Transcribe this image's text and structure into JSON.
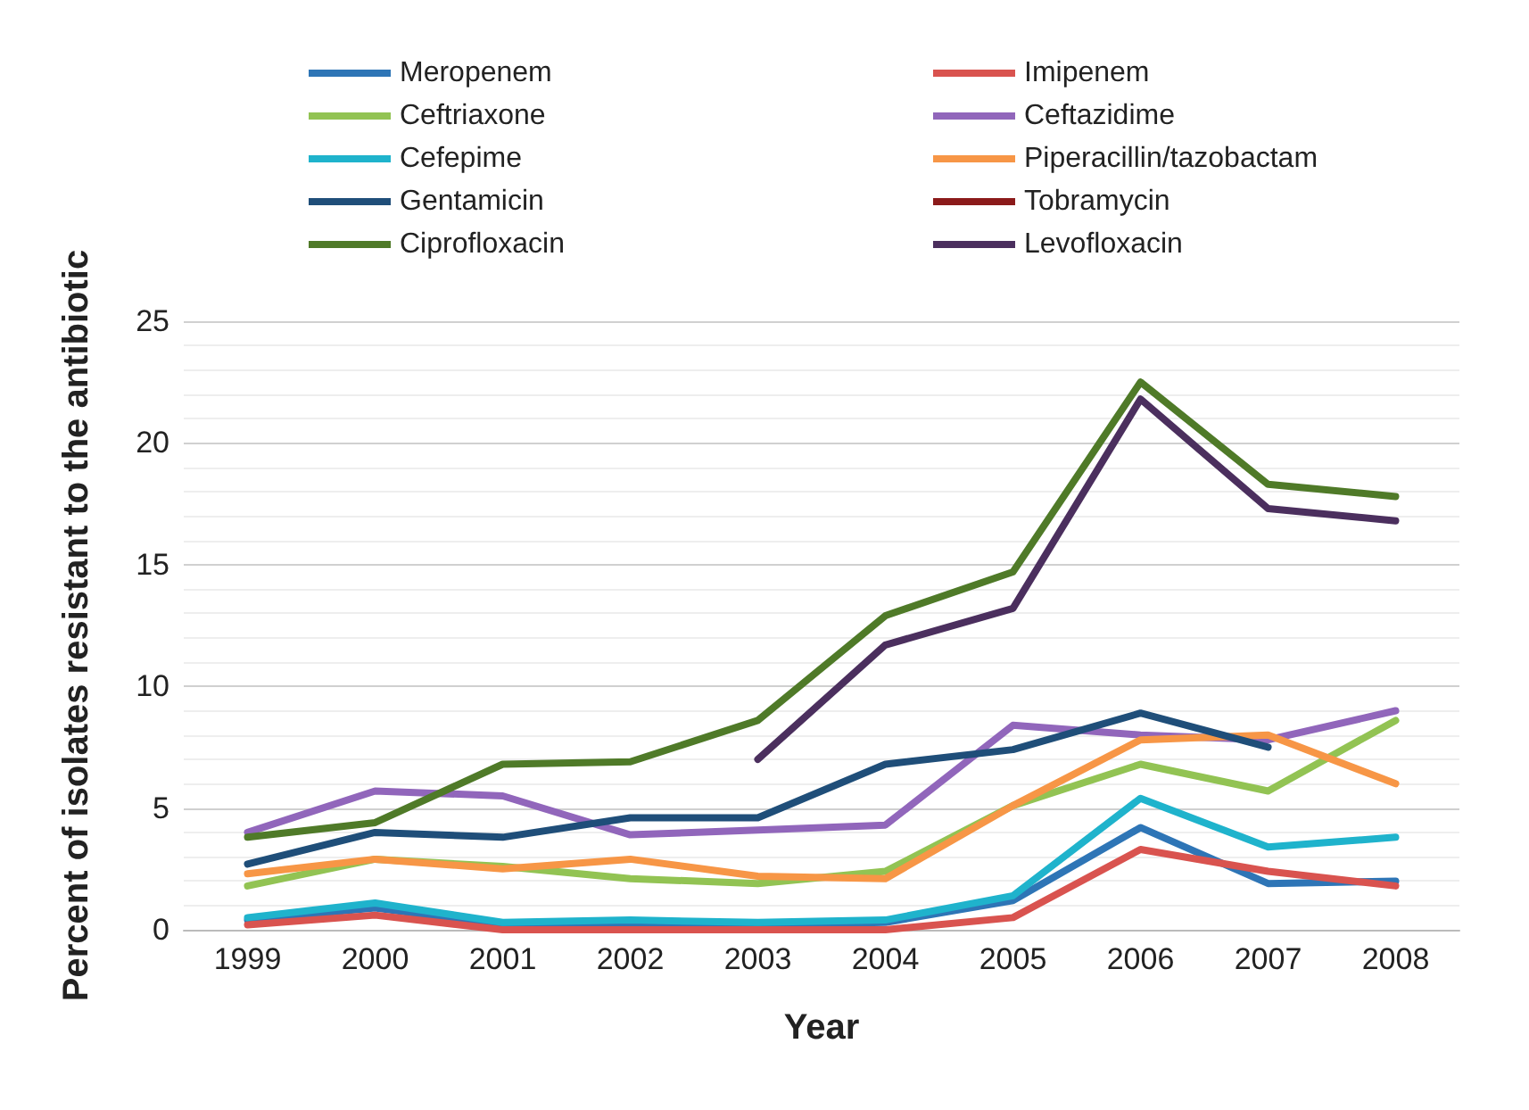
{
  "chart_data": {
    "type": "line",
    "xlabel": "Year",
    "ylabel": "Percent of isolates resistant to the antibiotic",
    "categories": [
      "1999",
      "2000",
      "2001",
      "2002",
      "2003",
      "2004",
      "2005",
      "2006",
      "2007",
      "2008"
    ],
    "ylim": [
      0,
      25
    ],
    "yticks": [
      0,
      5,
      10,
      15,
      20,
      25
    ],
    "grid": "y",
    "legend": "top",
    "marker": "none",
    "line_style": "solid",
    "series": [
      {
        "name": "Meropenem",
        "color": "#2e75b6",
        "values": [
          0.4,
          0.9,
          0.2,
          0.3,
          0.2,
          0.3,
          1.2,
          4.2,
          1.9,
          2.0
        ]
      },
      {
        "name": "Imipenem",
        "color": "#d9534f",
        "values": [
          0.2,
          0.6,
          0,
          0,
          0,
          0,
          0.5,
          3.3,
          2.4,
          1.8
        ]
      },
      {
        "name": "Ceftriaxone",
        "color": "#92c353",
        "values": [
          1.8,
          2.9,
          2.6,
          2.1,
          1.9,
          2.4,
          5.1,
          6.8,
          5.7,
          8.6
        ]
      },
      {
        "name": "Ceftazidime",
        "color": "#9166bb",
        "values": [
          4.0,
          5.7,
          5.5,
          3.9,
          4.1,
          4.3,
          8.4,
          8.0,
          7.8,
          9.0
        ]
      },
      {
        "name": "Cefepime",
        "color": "#1fb3cc",
        "values": [
          0.5,
          1.1,
          0.3,
          0.4,
          0.3,
          0.4,
          1.4,
          5.4,
          3.4,
          3.8
        ]
      },
      {
        "name": "Piperacillin/tazobactam",
        "color": "#f79646",
        "values": [
          2.3,
          2.9,
          2.5,
          2.9,
          2.2,
          2.1,
          5.1,
          7.8,
          8.0,
          6.0
        ]
      },
      {
        "name": "Gentamicin",
        "color": "#1f4e79",
        "values": [
          2.7,
          4.0,
          3.8,
          4.6,
          4.6,
          6.8,
          7.4,
          8.9,
          7.5,
          null
        ]
      },
      {
        "name": "Tobramycin",
        "color": "#8b1a1a",
        "values": [
          null,
          null,
          null,
          null,
          null,
          null,
          null,
          null,
          null,
          null
        ]
      },
      {
        "name": "Ciprofloxacin",
        "color": "#4f7a28",
        "values": [
          3.8,
          4.4,
          6.8,
          6.9,
          8.6,
          12.9,
          14.7,
          22.5,
          18.3,
          17.8
        ]
      },
      {
        "name": "Levofloxacin",
        "color": "#4b2f5e",
        "values": [
          null,
          null,
          null,
          null,
          7.0,
          11.7,
          13.2,
          21.8,
          17.3,
          16.8
        ]
      }
    ]
  }
}
